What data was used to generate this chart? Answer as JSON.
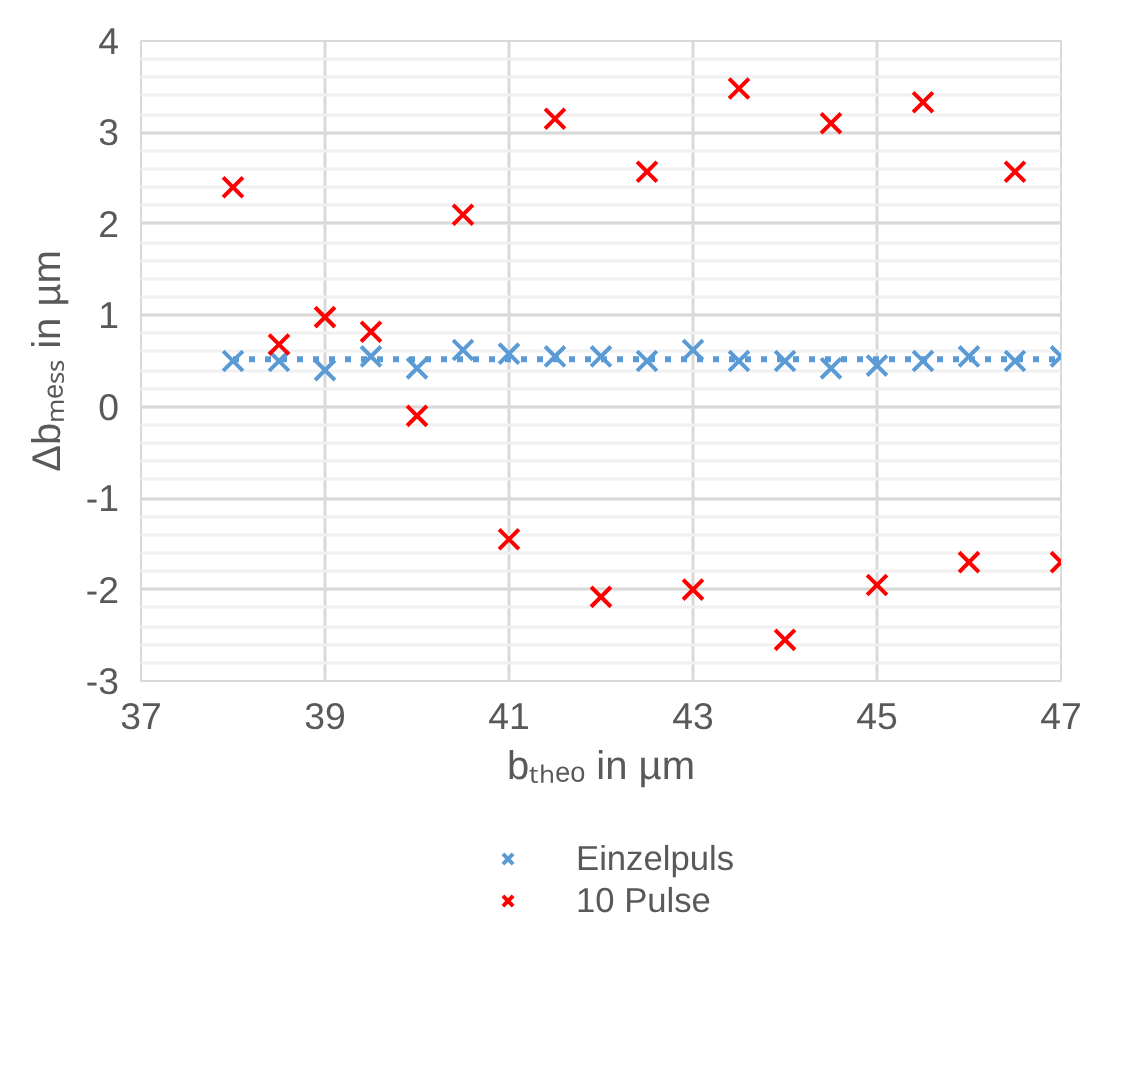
{
  "chart_data": {
    "type": "scatter",
    "xlabel": "bₜₕₑₒ in µm",
    "ylabel": "Δbₘₑₛₛ in µm",
    "xlim": [
      37,
      47
    ],
    "xticks": [
      37,
      39,
      41,
      43,
      45,
      47
    ],
    "ylim": [
      -3,
      4
    ],
    "yticks": [
      -3,
      -2,
      -1,
      0,
      1,
      2,
      3,
      4
    ],
    "grid": true,
    "legend": "bottom",
    "marker": "cross",
    "series": [
      {
        "name": "Einzelpuls",
        "color": "#5b9bd5",
        "x": [
          38,
          38.5,
          39,
          39.5,
          40,
          40.5,
          41,
          41.5,
          42,
          42.5,
          43,
          43.5,
          44,
          44.5,
          45,
          45.5,
          46,
          46.5,
          47
        ],
        "values": [
          0.5,
          0.5,
          0.4,
          0.55,
          0.42,
          0.62,
          0.58,
          0.55,
          0.55,
          0.5,
          0.62,
          0.5,
          0.5,
          0.42,
          0.45,
          0.5,
          0.55,
          0.5,
          0.55
        ]
      },
      {
        "name": "10 Pulse",
        "color": "#ff0000",
        "x": [
          38,
          38.5,
          39,
          39.5,
          40,
          40.5,
          41,
          41.5,
          42,
          42.5,
          43,
          43.5,
          44,
          44.5,
          45,
          45.5,
          46,
          46.5,
          47
        ],
        "values": [
          2.4,
          0.68,
          0.98,
          0.82,
          -0.1,
          2.1,
          -1.45,
          3.15,
          -2.08,
          2.57,
          -2.0,
          3.48,
          -2.55,
          3.1,
          -1.95,
          3.33,
          -1.7,
          2.57,
          -1.7
        ]
      },
      {
        "type": "line",
        "color": "#5b9bd5",
        "line_style": "dotted",
        "marker": "none",
        "x": [
          38,
          47
        ],
        "values": [
          0.52,
          0.52
        ]
      }
    ]
  }
}
